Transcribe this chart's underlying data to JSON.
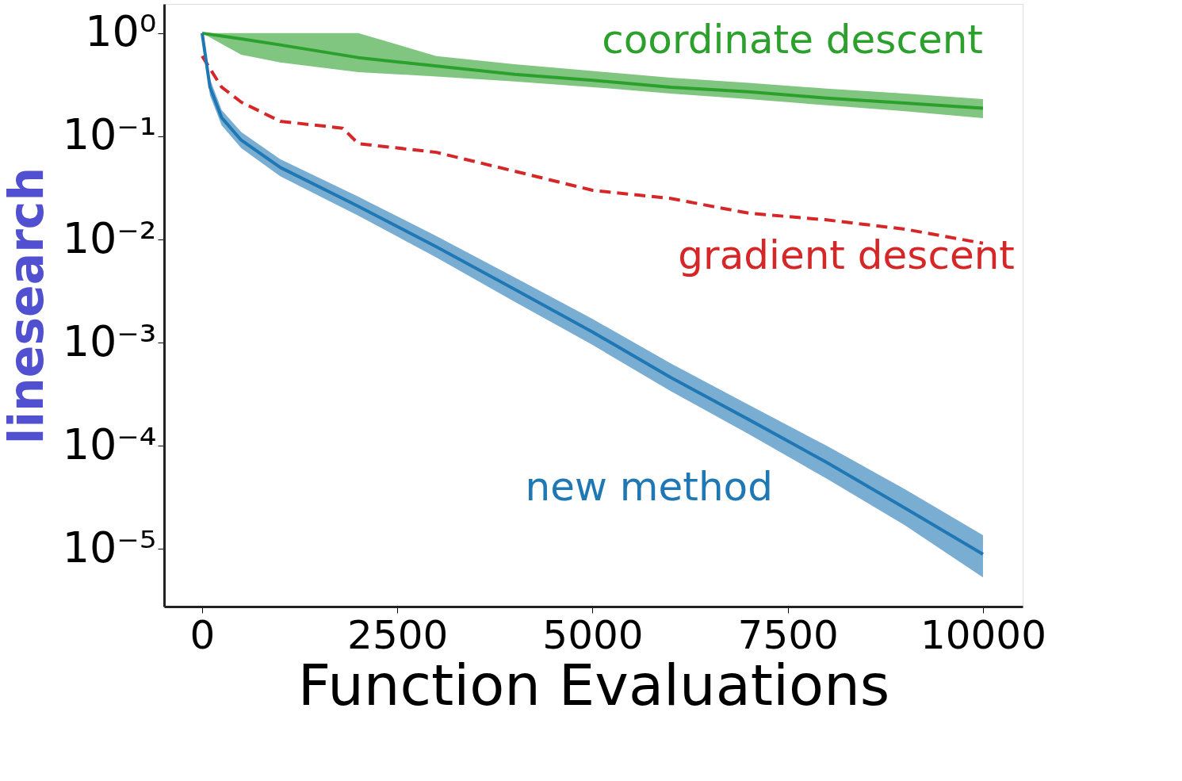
{
  "chart_data": {
    "type": "line",
    "xlabel": "Function Evaluations",
    "ylabel": "linesearch",
    "log": "y",
    "grid": false,
    "xlim": [
      -487,
      10508
    ],
    "xticks": [
      0,
      2500,
      5000,
      7500,
      10000
    ],
    "ylim": [
      2.77e-06,
      1.92
    ],
    "yticks": [
      {
        "value": 1,
        "label": "10⁰"
      },
      {
        "value": 0.1,
        "label": "10⁻¹"
      },
      {
        "value": 0.01,
        "label": "10⁻²"
      },
      {
        "value": 0.001,
        "label": "10⁻³"
      },
      {
        "value": 0.0001,
        "label": "10⁻⁴"
      },
      {
        "value": 1e-05,
        "label": "10⁻⁵"
      }
    ],
    "series": [
      {
        "name": "coordinate descent",
        "color": "#2ca02c",
        "line_style": "solid",
        "x": [
          0,
          500,
          1000,
          2000,
          3000,
          4000,
          5000,
          6000,
          7000,
          8000,
          9000,
          10000
        ],
        "values": [
          1.0,
          0.88,
          0.77,
          0.58,
          0.48,
          0.4,
          0.35,
          0.3,
          0.27,
          0.235,
          0.21,
          0.187
        ],
        "upper": [
          1.0,
          1.0,
          1.0,
          1.0,
          0.6,
          0.5,
          0.43,
          0.37,
          0.33,
          0.29,
          0.26,
          0.23
        ],
        "lower": [
          1.0,
          0.62,
          0.52,
          0.42,
          0.38,
          0.34,
          0.3,
          0.26,
          0.23,
          0.2,
          0.175,
          0.15
        ]
      },
      {
        "name": "gradient descent",
        "color": "#d62728",
        "line_style": "dashed",
        "x": [
          0,
          250,
          500,
          1000,
          1800,
          2000,
          3000,
          4000,
          5000,
          6000,
          7000,
          8000,
          9000,
          10000
        ],
        "values": [
          0.6,
          0.3,
          0.215,
          0.14,
          0.12,
          0.085,
          0.07,
          0.046,
          0.03,
          0.025,
          0.018,
          0.0155,
          0.0126,
          0.0092
        ]
      },
      {
        "name": "new method",
        "color": "#1f77b4",
        "line_style": "solid",
        "x": [
          0,
          100,
          250,
          500,
          1000,
          2000,
          3000,
          4000,
          5000,
          6000,
          7000,
          8000,
          9000,
          10000
        ],
        "values": [
          1.0,
          0.3,
          0.152,
          0.092,
          0.05,
          0.021,
          0.0085,
          0.0033,
          0.00127,
          0.00046,
          0.00018,
          6.9e-05,
          2.5e-05,
          8.9e-06
        ],
        "upper": [
          1.0,
          0.36,
          0.18,
          0.11,
          0.06,
          0.026,
          0.0108,
          0.0043,
          0.0017,
          0.00063,
          0.00025,
          0.0001,
          3.8e-05,
          1.36e-05
        ],
        "lower": [
          1.0,
          0.25,
          0.128,
          0.077,
          0.041,
          0.017,
          0.0067,
          0.0025,
          0.00095,
          0.00034,
          0.00013,
          4.8e-05,
          1.7e-05,
          5.3e-06
        ]
      }
    ]
  }
}
